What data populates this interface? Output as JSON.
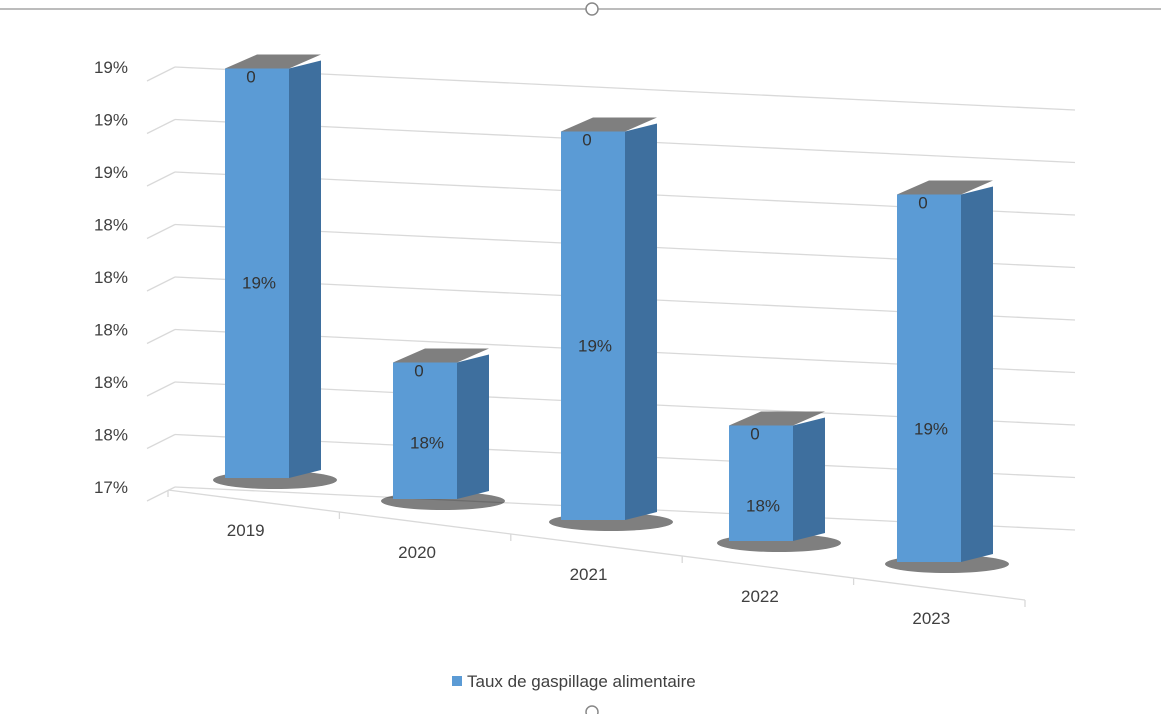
{
  "chart_data": {
    "type": "bar",
    "categories": [
      "2019",
      "2020",
      "2021",
      "2022",
      "2023"
    ],
    "series": [
      {
        "name": "Taux de gaspillage alimentaire",
        "values": [
          18.95,
          17.65,
          18.85,
          17.55,
          18.75
        ],
        "value_labels": [
          "19%",
          "18%",
          "19%",
          "18%",
          "19%"
        ],
        "top_labels": [
          "0",
          "0",
          "0",
          "0",
          "0"
        ]
      }
    ],
    "y_tick_labels": [
      "17%",
      "18%",
      "18%",
      "18%",
      "18%",
      "18%",
      "19%",
      "19%",
      "19%"
    ],
    "ylim": [
      17,
      19
    ],
    "grid": true,
    "three_d": true,
    "legend_position": "bottom",
    "colors": {
      "bar_front": "#5B9BD5",
      "bar_side": "#3E6F9E",
      "bar_top": "#7f7f7f",
      "gridline": "#d9d9d9"
    }
  }
}
